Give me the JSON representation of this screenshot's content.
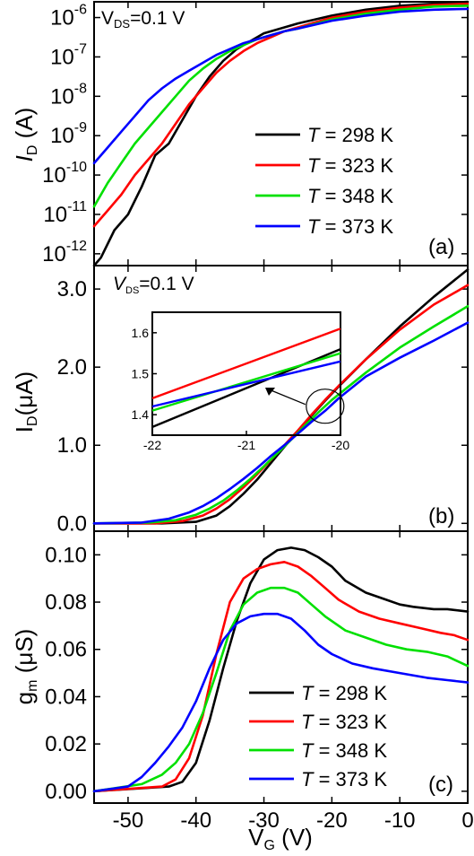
{
  "colors": {
    "T298": "#000000",
    "T323": "#ff0000",
    "T348": "#00e000",
    "T373": "#0000ff"
  },
  "chart_data": [
    {
      "id": "a",
      "type": "line",
      "panel_label": "(a)",
      "annotation": {
        "main": "V",
        "sub": "DS",
        "rest": "=0.1 V"
      },
      "ylabel": {
        "main": "I",
        "sub": "D",
        "rest": " (A)"
      },
      "xlim": [
        -55,
        0
      ],
      "ylim": [
        -12.3,
        -5.6
      ],
      "yscale": "log",
      "yticks": [
        {
          "mant": "10",
          "exp": "-6",
          "v": -6
        },
        {
          "mant": "10",
          "exp": "-7",
          "v": -7
        },
        {
          "mant": "10",
          "exp": "-8",
          "v": -8
        },
        {
          "mant": "10",
          "exp": "-9",
          "v": -9
        },
        {
          "mant": "10",
          "exp": "-10",
          "v": -10
        },
        {
          "mant": "10",
          "exp": "-11",
          "v": -11
        },
        {
          "mant": "10",
          "exp": "-12",
          "v": -12
        }
      ],
      "legend": {
        "position": "right",
        "entries": [
          {
            "sym": "T",
            "rest": " = 298 K",
            "color": "#000000"
          },
          {
            "sym": "T",
            "rest": " = 323 K",
            "color": "#ff0000"
          },
          {
            "sym": "T",
            "rest": " = 348 K",
            "color": "#00e000"
          },
          {
            "sym": "T",
            "rest": " = 373 K",
            "color": "#0000ff"
          }
        ]
      },
      "series": [
        {
          "color": "#000000",
          "x": [
            -55,
            -54,
            -52,
            -50,
            -48,
            -46,
            -44,
            -42,
            -40,
            -38,
            -36,
            -34,
            -32,
            -30,
            -28,
            -25,
            -20,
            -15,
            -10,
            -5,
            0
          ],
          "log10_y": [
            -12.3,
            -12.1,
            -11.4,
            -11.0,
            -10.3,
            -9.5,
            -9.2,
            -8.6,
            -8.0,
            -7.5,
            -7.1,
            -6.8,
            -6.6,
            -6.4,
            -6.3,
            -6.15,
            -5.95,
            -5.8,
            -5.7,
            -5.65,
            -5.6
          ]
        },
        {
          "color": "#ff0000",
          "x": [
            -55,
            -53,
            -51,
            -49,
            -47,
            -45,
            -43,
            -41,
            -39,
            -37,
            -35,
            -33,
            -31,
            -29,
            -27,
            -25,
            -20,
            -15,
            -10,
            -5,
            0
          ],
          "log10_y": [
            -11.3,
            -10.9,
            -10.5,
            -10.0,
            -9.6,
            -9.2,
            -8.7,
            -8.2,
            -7.8,
            -7.4,
            -7.1,
            -6.85,
            -6.65,
            -6.5,
            -6.35,
            -6.25,
            -6.0,
            -5.85,
            -5.75,
            -5.68,
            -5.65
          ]
        },
        {
          "color": "#00e000",
          "x": [
            -55,
            -53,
            -51,
            -49,
            -47,
            -45,
            -43,
            -41,
            -39,
            -37,
            -35,
            -33,
            -31,
            -29,
            -27,
            -25,
            -20,
            -15,
            -10,
            -5,
            0
          ],
          "log10_y": [
            -10.8,
            -10.2,
            -9.7,
            -9.2,
            -8.8,
            -8.4,
            -8.0,
            -7.6,
            -7.3,
            -7.05,
            -6.85,
            -6.7,
            -6.55,
            -6.45,
            -6.35,
            -6.28,
            -6.05,
            -5.9,
            -5.8,
            -5.72,
            -5.7
          ]
        },
        {
          "color": "#0000ff",
          "x": [
            -55,
            -53,
            -51,
            -49,
            -47,
            -45,
            -43,
            -41,
            -39,
            -37,
            -35,
            -33,
            -31,
            -29,
            -27,
            -25,
            -20,
            -15,
            -10,
            -5,
            0
          ],
          "log10_y": [
            -9.7,
            -9.3,
            -8.9,
            -8.5,
            -8.1,
            -7.8,
            -7.55,
            -7.35,
            -7.15,
            -6.95,
            -6.8,
            -6.65,
            -6.55,
            -6.45,
            -6.35,
            -6.28,
            -6.08,
            -5.95,
            -5.85,
            -5.8,
            -5.78
          ]
        }
      ]
    },
    {
      "id": "b",
      "type": "line",
      "panel_label": "(b)",
      "annotation": {
        "main": "V",
        "sub": "DS",
        "rest": "=0.1 V"
      },
      "ylabel": {
        "main": "I",
        "sub": "D",
        "rest": "(μA)"
      },
      "xlim": [
        -55,
        0
      ],
      "ylim": [
        -0.1,
        3.3
      ],
      "yticks": [
        {
          "label": "0.0",
          "v": 0
        },
        {
          "label": "1.0",
          "v": 1.0
        },
        {
          "label": "2.0",
          "v": 2.0
        },
        {
          "label": "3.0",
          "v": 3.0
        }
      ],
      "series": [
        {
          "color": "#000000",
          "x": [
            -55,
            -45,
            -40,
            -37,
            -35,
            -33,
            -31,
            -29,
            -27,
            -25,
            -23,
            -21,
            -19,
            -15,
            -10,
            -5,
            0
          ],
          "y": [
            0,
            0.0,
            0.02,
            0.1,
            0.22,
            0.38,
            0.56,
            0.77,
            0.98,
            1.18,
            1.38,
            1.57,
            1.75,
            2.1,
            2.52,
            2.9,
            3.25
          ]
        },
        {
          "color": "#ff0000",
          "x": [
            -55,
            -46,
            -42,
            -39,
            -37,
            -35,
            -33,
            -31,
            -29,
            -27,
            -25,
            -23,
            -21,
            -19,
            -15,
            -10,
            -5,
            0
          ],
          "y": [
            0,
            0.0,
            0.03,
            0.1,
            0.19,
            0.31,
            0.46,
            0.63,
            0.81,
            1.0,
            1.19,
            1.39,
            1.58,
            1.76,
            2.1,
            2.48,
            2.8,
            3.05
          ]
        },
        {
          "color": "#00e000",
          "x": [
            -55,
            -47,
            -43,
            -40,
            -38,
            -36,
            -34,
            -32,
            -30,
            -28,
            -26,
            -24,
            -22,
            -20,
            -15,
            -10,
            -5,
            0
          ],
          "y": [
            0,
            0.01,
            0.04,
            0.11,
            0.19,
            0.29,
            0.42,
            0.57,
            0.73,
            0.9,
            1.07,
            1.25,
            1.42,
            1.58,
            1.93,
            2.25,
            2.52,
            2.78
          ]
        },
        {
          "color": "#0000ff",
          "x": [
            -55,
            -48,
            -44,
            -41,
            -39,
            -37,
            -35,
            -33,
            -31,
            -29,
            -27,
            -25,
            -23,
            -21,
            -19,
            -15,
            -10,
            -5,
            0
          ],
          "y": [
            0,
            0.01,
            0.06,
            0.14,
            0.22,
            0.32,
            0.44,
            0.57,
            0.71,
            0.86,
            1.0,
            1.15,
            1.3,
            1.44,
            1.6,
            1.88,
            2.12,
            2.34,
            2.57
          ]
        }
      ],
      "inset": {
        "xlim": [
          -22,
          -20
        ],
        "ylim": [
          1.35,
          1.65
        ],
        "xticks": [
          {
            "label": "-22",
            "v": -22
          },
          {
            "label": "-21",
            "v": -21
          },
          {
            "label": "-20",
            "v": -20
          }
        ],
        "yticks": [
          {
            "label": "1.4",
            "v": 1.4
          },
          {
            "label": "1.5",
            "v": 1.5
          },
          {
            "label": "1.6",
            "v": 1.6
          }
        ],
        "zoom_center": {
          "x": -21.0,
          "y": 1.5
        },
        "series": [
          {
            "color": "#000000",
            "x": [
              -22,
              -20
            ],
            "y": [
              1.37,
              1.56
            ]
          },
          {
            "color": "#ff0000",
            "x": [
              -22,
              -20
            ],
            "y": [
              1.44,
              1.61
            ]
          },
          {
            "color": "#00e000",
            "x": [
              -22,
              -20
            ],
            "y": [
              1.41,
              1.55
            ]
          },
          {
            "color": "#0000ff",
            "x": [
              -22,
              -20
            ],
            "y": [
              1.42,
              1.53
            ]
          }
        ]
      }
    },
    {
      "id": "c",
      "type": "line",
      "panel_label": "(c)",
      "ylabel": {
        "main": "g",
        "sub": "m",
        "rest": " (μS)"
      },
      "xlabel": {
        "main": "V",
        "sub": "G",
        "rest": " (V)"
      },
      "xlim": [
        -55,
        0
      ],
      "ylim": [
        -0.005,
        0.11
      ],
      "xticks": [
        {
          "label": "-50",
          "v": -50
        },
        {
          "label": "-40",
          "v": -40
        },
        {
          "label": "-30",
          "v": -30
        },
        {
          "label": "-20",
          "v": -20
        },
        {
          "label": "-10",
          "v": -10
        },
        {
          "label": "0",
          "v": 0
        }
      ],
      "yticks": [
        {
          "label": "0.00",
          "v": 0
        },
        {
          "label": "0.02",
          "v": 0.02
        },
        {
          "label": "0.04",
          "v": 0.04
        },
        {
          "label": "0.06",
          "v": 0.06
        },
        {
          "label": "0.08",
          "v": 0.08
        },
        {
          "label": "0.10",
          "v": 0.1
        }
      ],
      "legend": {
        "position": "bottom-right",
        "entries": [
          {
            "sym": "T",
            "rest": " = 298 K",
            "color": "#000000"
          },
          {
            "sym": "T",
            "rest": " = 323 K",
            "color": "#ff0000"
          },
          {
            "sym": "T",
            "rest": " = 348 K",
            "color": "#00e000"
          },
          {
            "sym": "T",
            "rest": " = 373 K",
            "color": "#0000ff"
          }
        ]
      },
      "series": [
        {
          "color": "#000000",
          "x": [
            -55,
            -44,
            -42,
            -40,
            -38,
            -36,
            -34,
            -32,
            -30,
            -28,
            -26,
            -24,
            -22,
            -20,
            -18,
            -15,
            -12,
            -10,
            -8,
            -5,
            -3,
            0
          ],
          "y": [
            0.0,
            0.002,
            0.004,
            0.012,
            0.03,
            0.052,
            0.072,
            0.088,
            0.098,
            0.102,
            0.103,
            0.102,
            0.099,
            0.095,
            0.089,
            0.084,
            0.081,
            0.079,
            0.078,
            0.077,
            0.077,
            0.076
          ]
        },
        {
          "color": "#ff0000",
          "x": [
            -55,
            -45,
            -43,
            -41,
            -39,
            -37,
            -35,
            -33,
            -31,
            -29,
            -27,
            -25,
            -23,
            -21,
            -19,
            -16,
            -13,
            -10,
            -7,
            -4,
            -2,
            0
          ],
          "y": [
            0.0,
            0.002,
            0.005,
            0.014,
            0.032,
            0.058,
            0.08,
            0.09,
            0.094,
            0.096,
            0.097,
            0.095,
            0.091,
            0.086,
            0.081,
            0.076,
            0.073,
            0.071,
            0.069,
            0.067,
            0.066,
            0.064
          ]
        },
        {
          "color": "#00e000",
          "x": [
            -55,
            -48,
            -45,
            -43,
            -41,
            -39,
            -37,
            -35,
            -33,
            -31,
            -29,
            -27,
            -25,
            -23,
            -21,
            -18,
            -15,
            -12,
            -9,
            -6,
            -3,
            0
          ],
          "y": [
            0.0,
            0.003,
            0.007,
            0.012,
            0.02,
            0.033,
            0.05,
            0.068,
            0.079,
            0.084,
            0.086,
            0.086,
            0.084,
            0.079,
            0.074,
            0.068,
            0.065,
            0.062,
            0.06,
            0.059,
            0.057,
            0.053
          ]
        },
        {
          "color": "#0000ff",
          "x": [
            -55,
            -50,
            -48,
            -46,
            -44,
            -42,
            -40,
            -38,
            -36,
            -34,
            -32,
            -30,
            -28,
            -26,
            -24,
            -22,
            -20,
            -17,
            -14,
            -10,
            -6,
            -3,
            0
          ],
          "y": [
            0.0,
            0.002,
            0.006,
            0.012,
            0.019,
            0.027,
            0.038,
            0.052,
            0.064,
            0.071,
            0.074,
            0.075,
            0.075,
            0.073,
            0.068,
            0.062,
            0.058,
            0.054,
            0.052,
            0.05,
            0.048,
            0.047,
            0.046
          ]
        }
      ]
    }
  ]
}
